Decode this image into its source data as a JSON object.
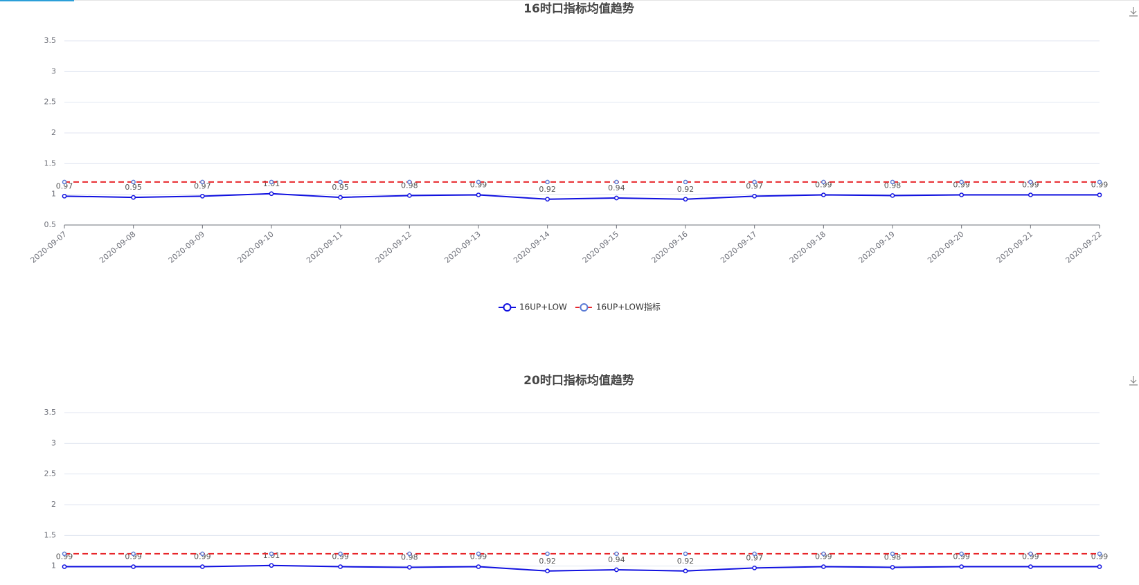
{
  "chart_data": [
    {
      "type": "line",
      "title": "16时口指标均值趋势",
      "categories": [
        "2020-09-07",
        "2020-09-08",
        "2020-09-09",
        "2020-09-10",
        "2020-09-11",
        "2020-09-12",
        "2020-09-13",
        "2020-09-14",
        "2020-09-15",
        "2020-09-16",
        "2020-09-17",
        "2020-09-18",
        "2020-09-19",
        "2020-09-20",
        "2020-09-21",
        "2020-09-22"
      ],
      "series": [
        {
          "name": "16UP+LOW",
          "color": "#1010e0",
          "values": [
            0.97,
            0.95,
            0.97,
            1.01,
            0.95,
            0.98,
            0.99,
            0.92,
            0.94,
            0.92,
            0.97,
            0.99,
            0.98,
            0.99,
            0.99,
            0.99
          ]
        },
        {
          "name": "16UP+LOW指标",
          "color": "#e8262a",
          "symbol_color": "#5b7bd5",
          "dashed": true,
          "values": [
            1.2,
            1.2,
            1.2,
            1.2,
            1.2,
            1.2,
            1.2,
            1.2,
            1.2,
            1.2,
            1.2,
            1.2,
            1.2,
            1.2,
            1.2,
            1.2
          ]
        }
      ],
      "ylim": [
        0.5,
        3.5
      ],
      "yticks": [
        0.5,
        1,
        1.5,
        2,
        2.5,
        3,
        3.5
      ],
      "grid": true
    },
    {
      "type": "line",
      "title": "20时口指标均值趋势",
      "categories": [
        null,
        null,
        null,
        null,
        null,
        null,
        null,
        null,
        null,
        null,
        null,
        null,
        null,
        null,
        null,
        null
      ],
      "series": [
        {
          "color": "#1010e0",
          "values": [
            0.99,
            0.99,
            0.99,
            1.01,
            0.99,
            0.98,
            0.99,
            0.92,
            0.94,
            0.92,
            0.97,
            0.99,
            0.98,
            0.99,
            0.99,
            0.99
          ]
        },
        {
          "color": "#e8262a",
          "symbol_color": "#5b7bd5",
          "dashed": true,
          "values": [
            1.2,
            1.2,
            1.2,
            1.2,
            1.2,
            1.2,
            1.2,
            1.2,
            1.2,
            1.2,
            1.2,
            1.2,
            1.2,
            1.2,
            1.2,
            1.2
          ]
        }
      ],
      "ylim": [
        0.5,
        3.5
      ],
      "yticks": [
        1,
        1.5,
        2,
        2.5,
        3,
        3.5
      ],
      "grid": true
    }
  ]
}
